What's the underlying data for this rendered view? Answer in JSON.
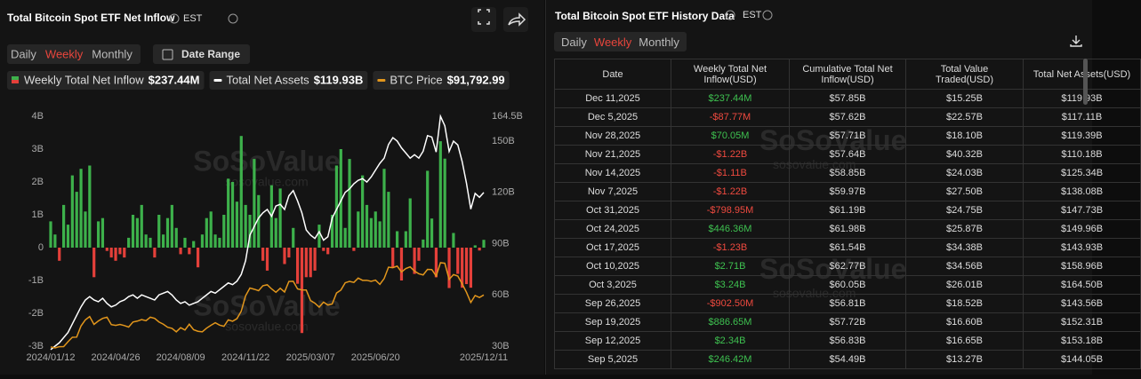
{
  "left_panel": {
    "title": "Total Bitcoin Spot ETF Net Inflow",
    "timezone": "EST",
    "tabs": [
      "Daily",
      "Weekly",
      "Monthly"
    ],
    "active_tab": 1,
    "date_range": "Date Range"
  },
  "chart_data": {
    "type": "combo",
    "categories": [
      "2024/01/12",
      null,
      null,
      null,
      null,
      null,
      null,
      null,
      null,
      null,
      null,
      null,
      null,
      null,
      null,
      "2024/04/26",
      null,
      null,
      null,
      null,
      null,
      null,
      null,
      null,
      null,
      null,
      null,
      null,
      null,
      null,
      "2024/08/09",
      null,
      null,
      null,
      null,
      null,
      null,
      null,
      null,
      null,
      null,
      null,
      null,
      null,
      null,
      "2024/11/22",
      null,
      null,
      null,
      null,
      null,
      null,
      null,
      null,
      null,
      null,
      null,
      null,
      null,
      null,
      "2025/03/07",
      null,
      null,
      null,
      null,
      null,
      null,
      null,
      null,
      null,
      null,
      null,
      null,
      null,
      null,
      "2025/06/20",
      null,
      null,
      null,
      null,
      null,
      null,
      null,
      null,
      null,
      null,
      null,
      null,
      null,
      null,
      null,
      null,
      null,
      null,
      null,
      null,
      null,
      null,
      null,
      null,
      "2025/12/11"
    ],
    "series": [
      {
        "name": "Weekly Total Net Inflow",
        "type": "bar",
        "color": "#3db14b",
        "negative_color": "#e5403a",
        "latest_label": "$237.44M",
        "values": [
          0.8,
          0.4,
          -0.4,
          1.3,
          0.7,
          2.2,
          1.7,
          2.4,
          1.1,
          2.5,
          -0.9,
          0.8,
          0.9,
          -0.1,
          -0.3,
          -0.4,
          -0.2,
          -0.3,
          0.3,
          1.0,
          0.9,
          1.3,
          0.4,
          0.3,
          -0.3,
          1.0,
          0.4,
          0.9,
          1.3,
          0.6,
          -0.2,
          0.3,
          -0.2,
          0.2,
          -0.6,
          0.4,
          0.9,
          1.1,
          0.4,
          0.3,
          1.0,
          2.1,
          2.0,
          1.4,
          3.4,
          1.3,
          1.0,
          2.7,
          1.6,
          -0.4,
          -0.7,
          1.9,
          0.9,
          1.8,
          -0.5,
          -0.3,
          0.6,
          -1.1,
          -2.6,
          -0.9,
          -0.9,
          -0.7,
          0.7,
          -0.1,
          -0.2,
          1.0,
          2.5,
          3.0,
          0.6,
          2.7,
          -0.1,
          1.1,
          2.2,
          1.3,
          0.9,
          1.1,
          0.8,
          2.4,
          1.7,
          -0.6,
          0.5,
          -1.0,
          0.5,
          1.5,
          -0.8,
          -0.4,
          0.24642,
          2.34,
          0.88665,
          -0.9025,
          3.24,
          2.71,
          -1.23,
          0.44636,
          -0.79895,
          -1.22,
          -1.11,
          -1.22,
          0.07005,
          -0.08777,
          0.23744
        ]
      },
      {
        "name": "Total Net Assets",
        "type": "line",
        "axis": "y2",
        "color": "#ffffff",
        "latest_label": "$119.93B",
        "values": [
          28,
          30,
          32,
          35,
          38,
          43,
          48,
          53,
          57,
          59,
          57,
          56,
          58,
          55,
          53,
          54,
          56,
          57,
          59,
          60,
          58,
          60,
          59,
          58,
          57,
          60,
          61,
          62,
          60,
          57,
          55,
          56,
          54,
          55,
          56,
          58,
          60,
          62,
          61,
          63,
          65,
          67,
          66,
          68,
          72,
          80,
          95,
          100,
          105,
          108,
          110,
          106,
          112,
          113,
          110,
          118,
          121,
          115,
          108,
          98,
          95,
          93,
          97,
          92,
          94,
          105,
          110,
          115,
          120,
          122,
          125,
          127,
          128,
          126,
          129,
          133,
          137,
          140,
          148,
          152,
          150,
          146,
          143,
          140,
          142,
          140,
          144.05,
          153.18,
          152.31,
          143.56,
          164.5,
          158.96,
          143.93,
          149.96,
          147.73,
          138.08,
          125.34,
          110.18,
          119.39,
          117.11,
          119.93
        ]
      },
      {
        "name": "BTC Price",
        "type": "line",
        "axis": "own",
        "color": "#e2961c",
        "latest_label": "$91,792.99",
        "values": [
          42800,
          41800,
          43000,
          43100,
          47700,
          51900,
          52000,
          62500,
          68300,
          71400,
          64000,
          67200,
          69700,
          70800,
          63800,
          63100,
          64000,
          62900,
          61500,
          66300,
          67100,
          68600,
          67500,
          70800,
          69700,
          66300,
          64200,
          61300,
          60300,
          57000,
          60900,
          58700,
          64200,
          59000,
          57500,
          57000,
          60500,
          63200,
          65600,
          63300,
          62200,
          68300,
          67000,
          69400,
          76500,
          91000,
          98300,
          97200,
          95800,
          100500,
          101400,
          97500,
          94300,
          98100,
          94600,
          104500,
          104700,
          97500,
          96600,
          96500,
          86500,
          84000,
          80300,
          85000,
          82300,
          83300,
          93600,
          96400,
          103300,
          104600,
          103600,
          107700,
          105600,
          105600,
          104600,
          105800,
          101800,
          107300,
          118000,
          117500,
          119000,
          113500,
          116700,
          118300,
          114300,
          111800,
          110700,
          115900,
          115700,
          109700,
          122200,
          121700,
          106400,
          111000,
          109600,
          102300,
          94300,
          84700,
          91300,
          89400,
          91792.99
        ]
      }
    ],
    "ylim": [
      -3,
      4
    ],
    "yticks": [
      {
        "value": 4,
        "label": "4B"
      },
      {
        "value": 3,
        "label": "3B"
      },
      {
        "value": 2,
        "label": "2B"
      },
      {
        "value": 1,
        "label": "1B"
      },
      0,
      {
        "value": -1,
        "label": "-1B"
      },
      {
        "value": -2,
        "label": "-2B"
      },
      {
        "value": -3,
        "label": "-3B"
      }
    ],
    "y2lim": [
      30,
      164.5
    ],
    "y2ticks": [
      {
        "value": 164.5,
        "label": "164.5B"
      },
      {
        "value": 150,
        "label": "150B"
      },
      {
        "value": 120,
        "label": "120B"
      },
      {
        "value": 90,
        "label": "90B"
      },
      {
        "value": 60,
        "label": "60B"
      },
      {
        "value": 30,
        "label": "30B"
      }
    ],
    "grid": false
  },
  "watermark": {
    "brand": "SoSoValue",
    "url": "sosovalue.com"
  },
  "right_panel": {
    "title": "Total Bitcoin Spot ETF History Data",
    "timezone": "EST",
    "tabs": [
      "Daily",
      "Weekly",
      "Monthly"
    ],
    "active_tab": 1,
    "table": {
      "headers": [
        "Date",
        "Weekly Total Net Inflow(USD)",
        "Cumulative Total Net Inflow(USD)",
        "Total Value Traded(USD)",
        "Total Net Assets(USD)"
      ],
      "rows": [
        [
          "Dec 11,2025",
          "$237.44M",
          "$57.85B",
          "$15.25B",
          "$119.93B"
        ],
        [
          "Dec 5,2025",
          "-$87.77M",
          "$57.62B",
          "$22.57B",
          "$117.11B"
        ],
        [
          "Nov 28,2025",
          "$70.05M",
          "$57.71B",
          "$18.10B",
          "$119.39B"
        ],
        [
          "Nov 21,2025",
          "-$1.22B",
          "$57.64B",
          "$40.32B",
          "$110.18B"
        ],
        [
          "Nov 14,2025",
          "-$1.11B",
          "$58.85B",
          "$24.03B",
          "$125.34B"
        ],
        [
          "Nov 7,2025",
          "-$1.22B",
          "$59.97B",
          "$27.50B",
          "$138.08B"
        ],
        [
          "Oct 31,2025",
          "-$798.95M",
          "$61.19B",
          "$24.75B",
          "$147.73B"
        ],
        [
          "Oct 24,2025",
          "$446.36M",
          "$61.98B",
          "$25.87B",
          "$149.96B"
        ],
        [
          "Oct 17,2025",
          "-$1.23B",
          "$61.54B",
          "$34.38B",
          "$143.93B"
        ],
        [
          "Oct 10,2025",
          "$2.71B",
          "$62.77B",
          "$34.56B",
          "$158.96B"
        ],
        [
          "Oct 3,2025",
          "$3.24B",
          "$60.05B",
          "$26.01B",
          "$164.50B"
        ],
        [
          "Sep 26,2025",
          "-$902.50M",
          "$56.81B",
          "$18.52B",
          "$143.56B"
        ],
        [
          "Sep 19,2025",
          "$886.65M",
          "$57.72B",
          "$16.60B",
          "$152.31B"
        ],
        [
          "Sep 12,2025",
          "$2.34B",
          "$56.83B",
          "$16.65B",
          "$153.18B"
        ],
        [
          "Sep 5,2025",
          "$246.42M",
          "$54.49B",
          "$13.27B",
          "$144.05B"
        ]
      ]
    }
  }
}
